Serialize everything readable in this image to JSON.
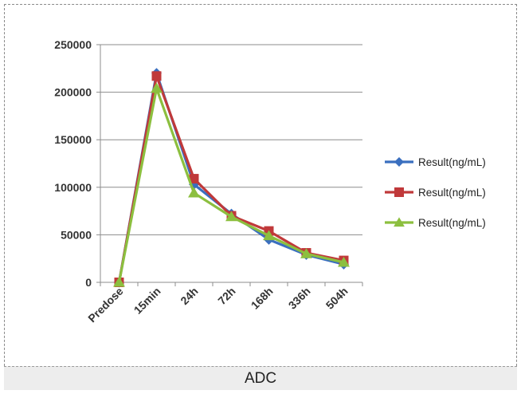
{
  "caption": "ADC",
  "chart_data": {
    "type": "line",
    "categories": [
      "Predose",
      "15min",
      "24h",
      "72h",
      "168h",
      "336h",
      "504h"
    ],
    "ylim": [
      0,
      250000
    ],
    "yticks": [
      0,
      50000,
      100000,
      150000,
      200000,
      250000
    ],
    "ytick_labels": [
      "0",
      "50000",
      "100000",
      "150000",
      "200000",
      "250000"
    ],
    "grid": true,
    "legend_position": "right",
    "series": [
      {
        "name": "Result(ng/mL)",
        "color": "#3a6fbf",
        "marker": "diamond",
        "values": [
          0,
          220000,
          103000,
          72000,
          45000,
          29000,
          19000
        ]
      },
      {
        "name": "Result(ng/mL)",
        "color": "#c0393a",
        "marker": "square",
        "values": [
          0,
          217000,
          109000,
          70000,
          54000,
          31000,
          23000
        ]
      },
      {
        "name": "Result(ng/mL)",
        "color": "#8cbf3f",
        "marker": "triangle",
        "values": [
          0,
          204000,
          94000,
          69000,
          49000,
          30000,
          21000
        ]
      }
    ]
  }
}
